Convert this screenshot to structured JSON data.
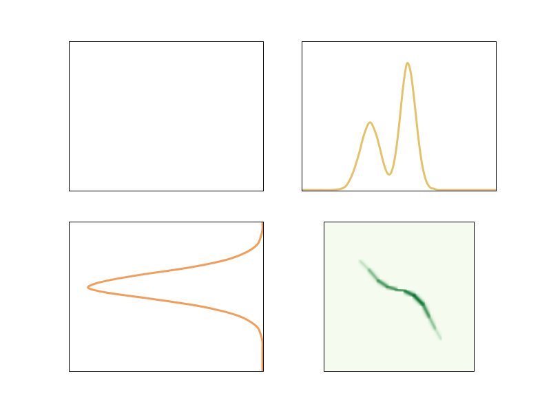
{
  "colors": {
    "top_right_line": "#e3c36a",
    "bottom_left_line": "#f29e5a",
    "heatmap_background": "#f5fbef",
    "heatmap_peak": "#006b2b",
    "frame": "#000000"
  },
  "chart_data": [
    {
      "panel": "top-left",
      "type": "line",
      "title": "",
      "xlabel": "",
      "ylabel": "",
      "series": [],
      "ticks": false,
      "grid": false
    },
    {
      "panel": "top-right",
      "type": "line",
      "title": "",
      "xlabel": "",
      "ylabel": "",
      "xlim": [
        0,
        1
      ],
      "ylim": [
        0,
        1
      ],
      "ticks": false,
      "grid": false,
      "series": [
        {
          "color": "#e3c36a",
          "x": [
            0.0,
            0.05,
            0.1,
            0.15,
            0.2,
            0.23,
            0.26,
            0.29,
            0.32,
            0.35,
            0.38,
            0.4,
            0.42,
            0.44,
            0.46,
            0.48,
            0.5,
            0.52,
            0.54,
            0.56,
            0.58,
            0.6,
            0.62,
            0.64,
            0.66,
            0.68,
            0.7,
            0.72,
            0.74,
            0.76,
            0.78,
            0.8,
            0.85,
            0.9,
            0.95,
            1.0
          ],
          "y": [
            0.0,
            0.0,
            0.0,
            0.0,
            0.01,
            0.04,
            0.13,
            0.27,
            0.44,
            0.53,
            0.44,
            0.33,
            0.21,
            0.13,
            0.14,
            0.27,
            0.51,
            0.8,
            0.99,
            0.92,
            0.68,
            0.4,
            0.19,
            0.07,
            0.02,
            0.01,
            0.0,
            0.0,
            0.0,
            0.0,
            0.0,
            0.0,
            0.0,
            0.0,
            0.0,
            0.0
          ]
        }
      ]
    },
    {
      "panel": "bottom-left",
      "type": "line",
      "orientation": "horizontal",
      "title": "",
      "xlabel": "",
      "ylabel": "",
      "xlim": [
        -1,
        0
      ],
      "ylim": [
        0,
        1
      ],
      "ticks": false,
      "grid": false,
      "series": [
        {
          "color": "#f29e5a",
          "y": [
            0.0,
            0.05,
            0.1,
            0.15,
            0.2,
            0.25,
            0.3,
            0.35,
            0.38,
            0.41,
            0.44,
            0.47,
            0.5,
            0.53,
            0.56,
            0.59,
            0.62,
            0.65,
            0.7,
            0.75,
            0.8,
            0.85,
            0.9,
            0.95,
            1.0
          ],
          "x": [
            0.0,
            0.0,
            -0.01,
            -0.03,
            -0.09,
            -0.2,
            -0.4,
            -0.68,
            -0.83,
            -0.94,
            -0.98,
            -0.88,
            -0.7,
            -0.52,
            -0.36,
            -0.24,
            -0.15,
            -0.09,
            -0.03,
            -0.01,
            0.0,
            0.0,
            0.0,
            0.0,
            0.0
          ]
        }
      ]
    },
    {
      "panel": "bottom-right",
      "type": "heatmap",
      "title": "",
      "xlabel": "",
      "ylabel": "",
      "xlim": [
        0,
        1
      ],
      "ylim": [
        0,
        1
      ],
      "ticks": false,
      "grid": false,
      "colormap": "Greens",
      "ridge": {
        "x": [
          0.24,
          0.3,
          0.36,
          0.42,
          0.48,
          0.54,
          0.6,
          0.66,
          0.7,
          0.74,
          0.78
        ],
        "y": [
          0.74,
          0.68,
          0.61,
          0.57,
          0.55,
          0.54,
          0.51,
          0.45,
          0.37,
          0.29,
          0.22
        ],
        "intensity": [
          0.15,
          0.45,
          0.7,
          0.8,
          0.72,
          0.78,
          1.0,
          0.9,
          0.65,
          0.4,
          0.15
        ]
      }
    }
  ]
}
